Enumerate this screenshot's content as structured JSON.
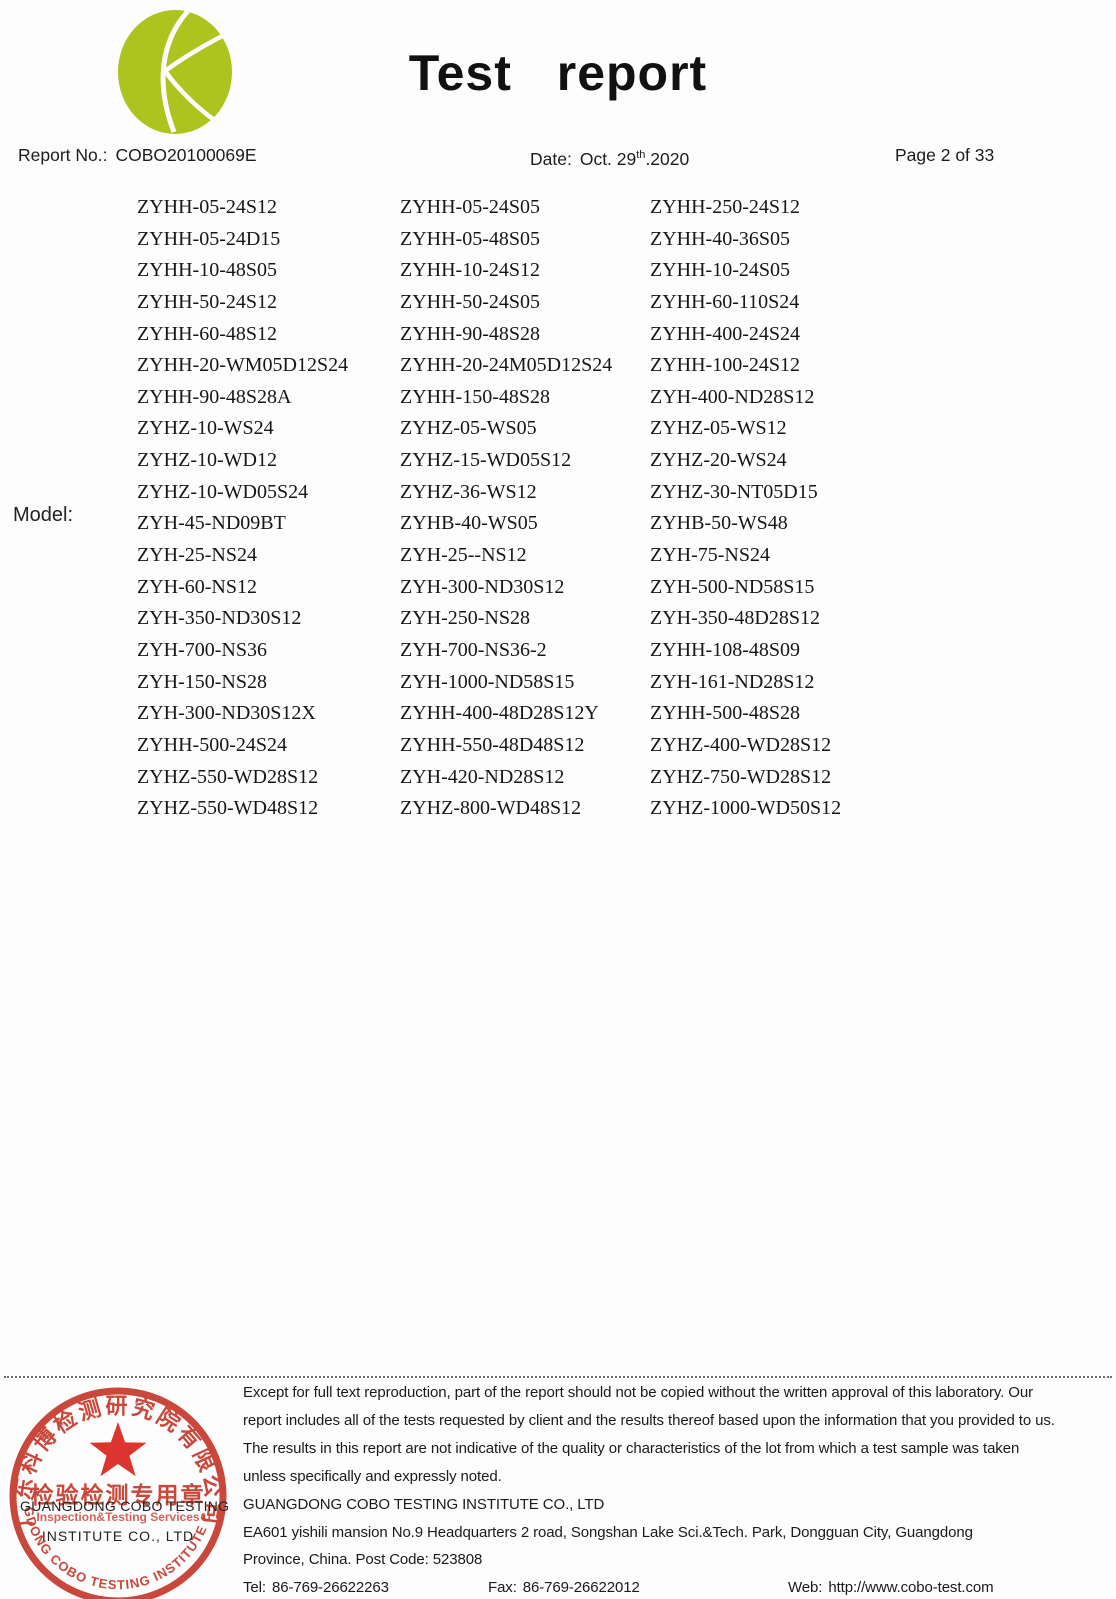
{
  "header": {
    "logo": "cobo-green-globe-logo",
    "title": "Test report",
    "report_no_label": "Report No.:",
    "report_no": "COBO20100069E",
    "date_label": "Date:",
    "date_main": "Oct. 29",
    "date_sup": "th",
    "date_tail": ".2020",
    "page": "Page 2 of 33"
  },
  "model_section": {
    "label": "Model:",
    "rows": [
      [
        "ZYHH-05-24S12",
        "ZYHH-05-24S05",
        "ZYHH-250-24S12"
      ],
      [
        "ZYHH-05-24D15",
        "ZYHH-05-48S05",
        "ZYHH-40-36S05"
      ],
      [
        "ZYHH-10-48S05",
        "ZYHH-10-24S12",
        "ZYHH-10-24S05"
      ],
      [
        "ZYHH-50-24S12",
        "ZYHH-50-24S05",
        "ZYHH-60-110S24"
      ],
      [
        "ZYHH-60-48S12",
        "ZYHH-90-48S28",
        "ZYHH-400-24S24"
      ],
      [
        "ZYHH-20-WM05D12S24",
        "ZYHH-20-24M05D12S24",
        "ZYHH-100-24S12"
      ],
      [
        "ZYHH-90-48S28A",
        "ZYHH-150-48S28",
        "ZYH-400-ND28S12"
      ],
      [
        "ZYHZ-10-WS24",
        "ZYHZ-05-WS05",
        "ZYHZ-05-WS12"
      ],
      [
        "ZYHZ-10-WD12",
        "ZYHZ-15-WD05S12",
        "ZYHZ-20-WS24"
      ],
      [
        "ZYHZ-10-WD05S24",
        "ZYHZ-36-WS12",
        "ZYHZ-30-NT05D15"
      ],
      [
        "ZYH-45-ND09BT",
        "ZYHB-40-WS05",
        "ZYHB-50-WS48"
      ],
      [
        "ZYH-25-NS24",
        "ZYH-25--NS12",
        "ZYH-75-NS24"
      ],
      [
        "ZYH-60-NS12",
        "ZYH-300-ND30S12",
        "ZYH-500-ND58S15"
      ],
      [
        "ZYH-350-ND30S12",
        "ZYH-250-NS28",
        "ZYH-350-48D28S12"
      ],
      [
        "ZYH-700-NS36",
        "ZYH-700-NS36-2",
        "ZYHH-108-48S09"
      ],
      [
        "ZYH-150-NS28",
        "ZYH-1000-ND58S15",
        "ZYH-161-ND28S12"
      ],
      [
        "ZYH-300-ND30S12X",
        "ZYHH-400-48D28S12Y",
        "ZYHH-500-48S28"
      ],
      [
        "ZYHH-500-24S24",
        "ZYHH-550-48D48S12",
        "ZYHZ-400-WD28S12"
      ],
      [
        "ZYHZ-550-WD28S12",
        "ZYH-420-ND28S12",
        "ZYHZ-750-WD28S12"
      ],
      [
        "ZYHZ-550-WD48S12",
        "ZYHZ-800-WD48S12",
        "ZYHZ-1000-WD50S12"
      ]
    ]
  },
  "footer": {
    "disclaimer_lines": [
      "Except for full text reproduction, part of the report should not be copied without the written approval of this laboratory. Our",
      "report includes all of the tests requested by client and the results thereof based upon the information that you provided to us.",
      "The results in this report are not indicative of the quality or characteristics of the lot from which a test sample was taken",
      "unless specifically and expressly noted."
    ],
    "company": "GUANGDONG COBO TESTING INSTITUTE CO., LTD",
    "address_line1": "EA601 yishili mansion No.9 Headquarters 2 road, Songshan Lake Sci.&Tech. Park, Dongguan City, Guangdong",
    "address_line2": "Province, China. Post Code: 523808",
    "tel_label": "Tel:",
    "tel": "86-769-26622263",
    "fax_label": "Fax:",
    "fax": "86-769-26622012",
    "web_label": "Web:",
    "web": "http://www.cobo-test.com"
  },
  "stamp": {
    "top_arc_text": "广东科博检测研究院有限公司",
    "center_cn": "检验检测专用章",
    "center_en": "Inspection&Testing Services",
    "bottom_arc_text": "GUANGDONG COBO TESTING INSTITUTE CO.,LTD",
    "overlay_line1": "GUANGDONG COBO TESTING",
    "overlay_line2": "INSTITUTE CO., LTD",
    "red_color": "#c5382b",
    "star_color": "#da251c"
  },
  "colors": {
    "logo_green": "#adc41f",
    "text": "#1c1c1c"
  }
}
